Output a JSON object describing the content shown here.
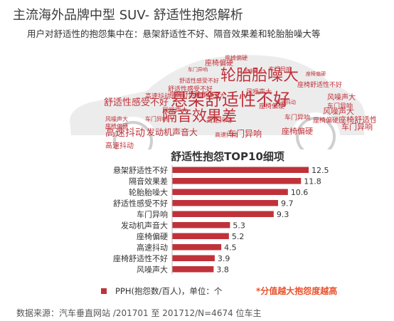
{
  "header": {
    "title": "主流海外品牌中型 SUV- 舒适性抱怨解析",
    "subtitle": "用户对舒适性的抱怨集中在：悬架舒适性不好、隔音效果差和轮胎胎噪大等"
  },
  "word_cloud": [
    {
      "text": "悬架舒适性不好",
      "color": "#c0323a"
    },
    {
      "text": "轮胎胎噪大",
      "color": "#c0323a"
    },
    {
      "text": "隔音效果差",
      "color": "#c0323a"
    },
    {
      "text": "舒适性感受不好",
      "color": "#c0323a"
    },
    {
      "text": "高速抖动",
      "color": "#c0323a"
    },
    {
      "text": "发动机声音大",
      "color": "#c0323a"
    },
    {
      "text": "车门异响",
      "color": "#c0323a"
    },
    {
      "text": "座椅偏硬",
      "color": "#c0323a"
    },
    {
      "text": "风噪声大",
      "color": "#c0323a"
    },
    {
      "text": "座椅舒适性不好",
      "color": "#c0323a"
    },
    {
      "text": "车门异响",
      "color": "#c0323a"
    },
    {
      "text": "风噪声大",
      "color": "#c0323a"
    },
    {
      "text": "座椅偏硬",
      "color": "#c0323a"
    },
    {
      "text": "高速抖动",
      "color": "#c0323a"
    },
    {
      "text": "车门异响",
      "color": "#c0323a"
    },
    {
      "text": "舒适性感受不好",
      "color": "#c0323a"
    },
    {
      "text": "座椅舒适性不好",
      "color": "#c0323a"
    },
    {
      "text": "高速抖动",
      "color": "#c0323a"
    },
    {
      "text": "风噪声大",
      "color": "#c0323a"
    },
    {
      "text": "座椅偏硬",
      "color": "#c0323a"
    },
    {
      "text": "座椅偏硬",
      "color": "#c0323a"
    },
    {
      "text": "风噪声大",
      "color": "#c0323a"
    },
    {
      "text": "高速抖动",
      "color": "#c0323a"
    },
    {
      "text": "车门异响",
      "color": "#c0323a"
    },
    {
      "text": "座椅舒适性不好",
      "color": "#c0323a"
    },
    {
      "text": "座椅偏硬",
      "color": "#c0323a"
    },
    {
      "text": "舒适性感受不好",
      "color": "#c0323a"
    },
    {
      "text": "车门异响",
      "color": "#c0323a"
    },
    {
      "text": "风噪声大",
      "color": "#c0323a"
    },
    {
      "text": "座椅偏硬",
      "color": "#c0323a"
    },
    {
      "text": "高速抖动",
      "color": "#c0323a"
    },
    {
      "text": "车门异响",
      "color": "#c0323a"
    },
    {
      "text": "发动机声音大",
      "color": "#c0323a"
    },
    {
      "text": "高速抖动",
      "color": "#c0323a"
    },
    {
      "text": "座椅偏硬",
      "color": "#c0323a"
    },
    {
      "text": "风噪声大",
      "color": "#c0323a"
    },
    {
      "text": "车门异响",
      "color": "#c0323a"
    }
  ],
  "chart_data": {
    "type": "bar",
    "orientation": "horizontal",
    "title": "舒适性抱怨TOP10细项",
    "categories": [
      "悬架舒适性不好",
      "隔音效果差",
      "轮胎胎噪大",
      "舒适性感受不好",
      "车门异响",
      "发动机声音大",
      "座椅偏硬",
      "高速抖动",
      "座椅舒适性不好",
      "风噪声大"
    ],
    "series": [
      {
        "name": "PPH(抱怨数/百人)，单位：个",
        "values": [
          12.5,
          11.8,
          10.6,
          9.7,
          9.3,
          5.3,
          5.2,
          4.5,
          3.9,
          3.8
        ],
        "color": "#c0323a"
      }
    ],
    "xlim": [
      0,
      12.5
    ],
    "grid": false,
    "legend_position": "bottom"
  },
  "legend_label": "PPH(抱怨数/百人)，单位：个",
  "note": "*分值越大抱怨度越高",
  "source": "数据来源：汽车垂直网站 /201701 至 201712/N=4674 位车主"
}
